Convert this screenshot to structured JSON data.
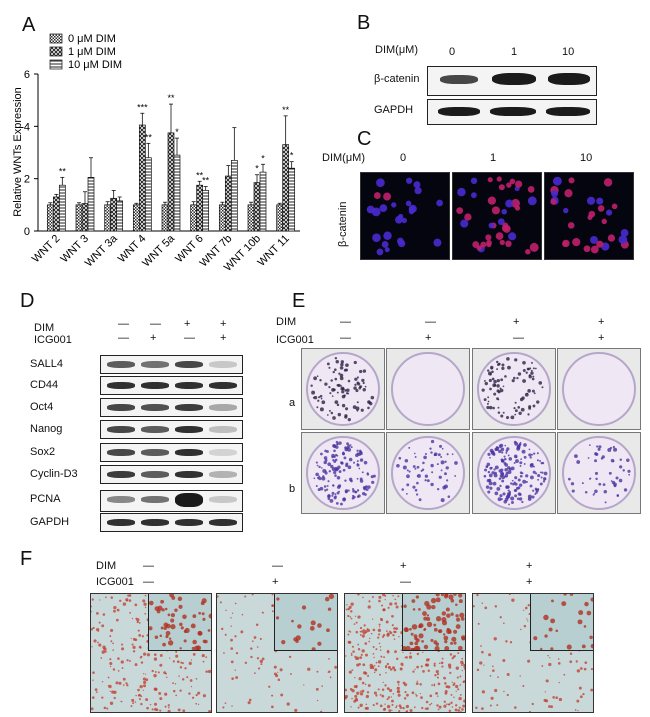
{
  "panels": {
    "A": "A",
    "B": "B",
    "C": "C",
    "D": "D",
    "E": "E",
    "F": "F"
  },
  "chart_data": {
    "type": "bar",
    "ylabel": "Relative WNTs  Expression",
    "ylim": [
      0,
      6
    ],
    "yticks": [
      "0",
      "2",
      "4",
      "6"
    ],
    "categories": [
      "WNT 2",
      "WNT 3",
      "WNT 3a",
      "WNT 4",
      "WNT 5a",
      "WNT 6",
      "WNT 7b",
      "WNT 10b",
      "WNT 11"
    ],
    "series": [
      {
        "name": "0 μM DIM",
        "values": [
          1,
          1,
          1,
          1,
          1,
          1,
          1,
          1,
          1
        ],
        "errors": [
          0.08,
          0.08,
          0.12,
          0.06,
          0.1,
          0.12,
          0.1,
          0.1,
          0.06
        ]
      },
      {
        "name": "1 μM DIM",
        "values": [
          1.3,
          1.05,
          1.25,
          4.05,
          3.75,
          1.75,
          2.1,
          1.85,
          3.3
        ],
        "errors": [
          0.1,
          0.45,
          0.3,
          0.45,
          1.1,
          0.15,
          0.4,
          0.3,
          1.1
        ]
      },
      {
        "name": "10 μM DIM",
        "values": [
          1.75,
          2.05,
          1.15,
          2.8,
          2.9,
          1.55,
          2.7,
          2.25,
          2.4
        ],
        "errors": [
          0.3,
          0.75,
          0.15,
          0.55,
          0.65,
          0.15,
          1.25,
          0.3,
          0.25
        ]
      }
    ],
    "significance": [
      {
        "category": "WNT 2",
        "series": 2,
        "label": "**"
      },
      {
        "category": "WNT 4",
        "series": 1,
        "label": "***"
      },
      {
        "category": "WNT 4",
        "series": 2,
        "label": "**"
      },
      {
        "category": "WNT 5a",
        "series": 1,
        "label": "**"
      },
      {
        "category": "WNT 5a",
        "series": 2,
        "label": "*"
      },
      {
        "category": "WNT 6",
        "series": 1,
        "label": "**"
      },
      {
        "category": "WNT 6",
        "series": 2,
        "label": "**"
      },
      {
        "category": "WNT 10b",
        "series": 1,
        "label": "*"
      },
      {
        "category": "WNT 10b",
        "series": 2,
        "label": "*"
      },
      {
        "category": "WNT 11",
        "series": 1,
        "label": "**"
      },
      {
        "category": "WNT 11",
        "series": 2,
        "label": "*"
      }
    ]
  },
  "panelB": {
    "dim_label": "DIM(μM)",
    "doses": [
      "0",
      "1",
      "10"
    ],
    "rows": [
      "β-catenin",
      "GAPDH"
    ]
  },
  "panelC": {
    "dim_label": "DIM(μM)",
    "doses": [
      "0",
      "1",
      "10"
    ],
    "row_label": "β-catenin"
  },
  "panelD": {
    "treatment_labels": [
      "DIM",
      "ICG001"
    ],
    "dim_signs": [
      "—",
      "—",
      "+",
      "+"
    ],
    "icg_signs": [
      "—",
      "+",
      "—",
      "+"
    ],
    "rows": [
      "SALL4",
      "CD44",
      "Oct4",
      "Nanog",
      "Sox2",
      "Cyclin-D3",
      "PCNA",
      "GAPDH"
    ]
  },
  "panelE": {
    "treatment_labels": [
      "DIM",
      "ICG001"
    ],
    "dim_signs": [
      "—",
      "—",
      "+",
      "+"
    ],
    "icg_signs": [
      "—",
      "+",
      "—",
      "+"
    ],
    "rows": [
      "a",
      "b"
    ]
  },
  "panelF": {
    "treatment_labels": [
      "DIM",
      "ICG001"
    ],
    "dim_signs": [
      "—",
      "—",
      "+",
      "+"
    ],
    "icg_signs": [
      "—",
      "+",
      "—",
      "+"
    ]
  }
}
